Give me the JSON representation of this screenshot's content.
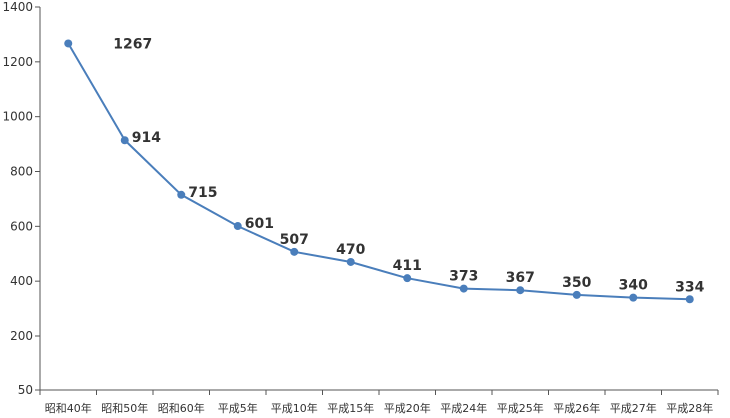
{
  "chart_data": {
    "type": "line",
    "categories": [
      "昭和40年",
      "昭和50年",
      "昭和60年",
      "平成5年",
      "平成10年",
      "平成15年",
      "平成20年",
      "平成24年",
      "平成25年",
      "平成26年",
      "平成27年",
      "平成28年"
    ],
    "series": [
      {
        "values": [
          1267,
          914,
          715,
          601,
          507,
          470,
          411,
          373,
          367,
          350,
          340,
          334
        ],
        "labels": [
          "1267",
          "914",
          "715",
          "601",
          "507",
          "470",
          "411",
          "373",
          "367",
          "350",
          "340",
          "334"
        ],
        "color": "#4a7ebb"
      }
    ],
    "yticks": [
      50,
      200,
      400,
      600,
      800,
      1000,
      1200,
      1400
    ],
    "ytick_labels": [
      "50",
      "200",
      "400",
      "600",
      "800",
      "1000",
      "1200",
      "1400"
    ],
    "ylim": [
      50,
      1400
    ],
    "ylim_note": "axis starts at 50 (broken scale near bottom)",
    "grid": false,
    "title": "",
    "xlabel": "",
    "ylabel": ""
  }
}
